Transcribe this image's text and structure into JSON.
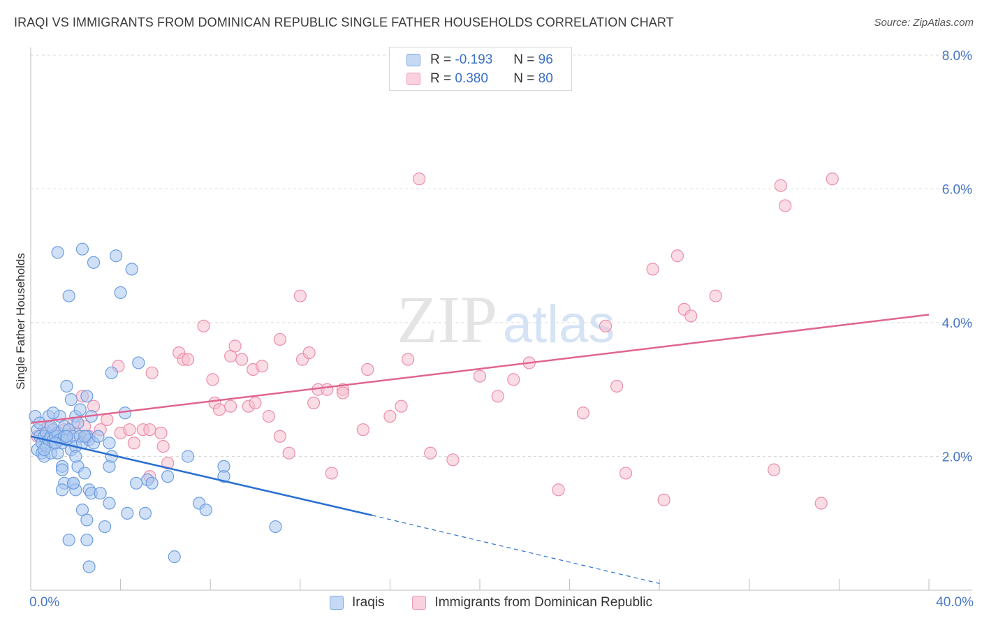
{
  "title": "IRAQI VS IMMIGRANTS FROM DOMINICAN REPUBLIC SINGLE FATHER HOUSEHOLDS CORRELATION CHART",
  "source": "Source: ZipAtlas.com",
  "watermark": {
    "zip": "ZIP",
    "atlas": "atlas"
  },
  "colors": {
    "blue_fill": "#a9c6f0",
    "blue_stroke": "#6d9ee0",
    "blue_line": "#2a6fd1",
    "pink_fill": "#f6bfd0",
    "pink_stroke": "#ec8eab",
    "pink_line": "#e0658f",
    "axis_label": "#4a78c8",
    "grid": "#d9d9d9"
  },
  "legend": {
    "rows": [
      {
        "r_label": "R =",
        "r_value": "-0.193",
        "n_label": "N =",
        "n_value": "96"
      },
      {
        "r_label": "R =",
        "r_value": "0.380",
        "n_label": "N =",
        "n_value": "80"
      }
    ]
  },
  "chart_data": {
    "type": "scatter",
    "title": "IRAQI VS IMMIGRANTS FROM DOMINICAN REPUBLIC SINGLE FATHER HOUSEHOLDS CORRELATION CHART",
    "xlabel": "",
    "ylabel": "Single Father Households",
    "xlim": [
      0,
      40
    ],
    "ylim": [
      0,
      8
    ],
    "x_tick_labels": [
      "0.0%",
      "40.0%"
    ],
    "y_ticks": [
      2,
      4,
      6,
      8
    ],
    "y_tick_labels": [
      "2.0%",
      "4.0%",
      "6.0%",
      "8.0%"
    ],
    "grid": true,
    "series": [
      {
        "name": "Iraqis",
        "color": "#a9c6f0",
        "trend": {
          "x0": 0,
          "y0": 2.3,
          "x1": 15.2,
          "y1": 1.12,
          "dash_to_x": 28.0,
          "dash_to_y": 0.1
        },
        "points": [
          [
            0.2,
            2.6
          ],
          [
            0.3,
            2.4
          ],
          [
            0.3,
            2.1
          ],
          [
            0.4,
            2.5
          ],
          [
            0.4,
            2.3
          ],
          [
            0.5,
            2.05
          ],
          [
            0.5,
            2.2
          ],
          [
            0.6,
            2.3
          ],
          [
            0.6,
            2.0
          ],
          [
            0.7,
            2.15
          ],
          [
            0.7,
            2.35
          ],
          [
            0.8,
            2.25
          ],
          [
            0.8,
            2.6
          ],
          [
            0.9,
            2.3
          ],
          [
            0.9,
            2.05
          ],
          [
            1.0,
            2.25
          ],
          [
            1.0,
            2.4
          ],
          [
            1.1,
            2.3
          ],
          [
            1.1,
            2.2
          ],
          [
            1.2,
            2.35
          ],
          [
            1.2,
            2.05
          ],
          [
            1.3,
            2.6
          ],
          [
            1.3,
            2.25
          ],
          [
            1.4,
            2.2
          ],
          [
            1.5,
            2.45
          ],
          [
            1.5,
            2.3
          ],
          [
            1.6,
            2.25
          ],
          [
            1.7,
            2.4
          ],
          [
            1.8,
            2.1
          ],
          [
            1.9,
            2.3
          ],
          [
            2.0,
            2.6
          ],
          [
            2.0,
            2.15
          ],
          [
            2.1,
            2.5
          ],
          [
            2.2,
            2.3
          ],
          [
            2.3,
            2.2
          ],
          [
            2.5,
            2.3
          ],
          [
            2.6,
            2.25
          ],
          [
            2.7,
            2.6
          ],
          [
            2.8,
            2.2
          ],
          [
            3.0,
            2.3
          ],
          [
            1.2,
            5.05
          ],
          [
            2.3,
            5.1
          ],
          [
            2.8,
            4.9
          ],
          [
            3.8,
            5.0
          ],
          [
            4.5,
            4.8
          ],
          [
            1.7,
            4.4
          ],
          [
            4.0,
            4.45
          ],
          [
            4.8,
            3.4
          ],
          [
            3.6,
            3.25
          ],
          [
            1.6,
            3.05
          ],
          [
            2.5,
            2.9
          ],
          [
            2.2,
            2.7
          ],
          [
            1.0,
            2.65
          ],
          [
            1.8,
            2.85
          ],
          [
            4.2,
            2.65
          ],
          [
            3.5,
            2.2
          ],
          [
            1.4,
            1.85
          ],
          [
            2.1,
            1.85
          ],
          [
            2.4,
            1.75
          ],
          [
            3.5,
            1.85
          ],
          [
            3.6,
            2.0
          ],
          [
            2.0,
            2.0
          ],
          [
            1.5,
            1.6
          ],
          [
            1.9,
            1.6
          ],
          [
            2.0,
            1.5
          ],
          [
            1.4,
            1.5
          ],
          [
            2.6,
            1.5
          ],
          [
            2.7,
            1.45
          ],
          [
            3.1,
            1.45
          ],
          [
            3.5,
            1.3
          ],
          [
            4.7,
            1.6
          ],
          [
            5.2,
            1.65
          ],
          [
            5.4,
            1.6
          ],
          [
            6.1,
            1.7
          ],
          [
            7.0,
            2.0
          ],
          [
            8.6,
            1.85
          ],
          [
            8.6,
            1.7
          ],
          [
            7.5,
            1.3
          ],
          [
            7.8,
            1.2
          ],
          [
            2.3,
            1.2
          ],
          [
            2.5,
            1.05
          ],
          [
            3.3,
            0.95
          ],
          [
            4.3,
            1.15
          ],
          [
            5.1,
            1.15
          ],
          [
            1.7,
            0.75
          ],
          [
            2.5,
            0.75
          ],
          [
            2.6,
            0.35
          ],
          [
            6.4,
            0.5
          ],
          [
            10.9,
            0.95
          ],
          [
            1.4,
            1.8
          ],
          [
            1.9,
            1.6
          ],
          [
            1.1,
            2.2
          ],
          [
            0.6,
            2.1
          ],
          [
            0.9,
            2.45
          ],
          [
            1.6,
            2.3
          ],
          [
            2.4,
            2.3
          ]
        ]
      },
      {
        "name": "Immigrants from Dominican Republic",
        "color": "#f6bfd0",
        "trend": {
          "x0": 0,
          "y0": 2.5,
          "x1": 40,
          "y1": 4.12
        },
        "points": [
          [
            0.3,
            2.3
          ],
          [
            0.6,
            2.4
          ],
          [
            0.8,
            2.45
          ],
          [
            1.2,
            2.35
          ],
          [
            1.5,
            2.4
          ],
          [
            1.9,
            2.5
          ],
          [
            2.0,
            2.35
          ],
          [
            2.4,
            2.45
          ],
          [
            2.6,
            2.3
          ],
          [
            2.8,
            2.75
          ],
          [
            3.1,
            2.4
          ],
          [
            3.4,
            2.55
          ],
          [
            2.3,
            2.9
          ],
          [
            3.9,
            3.35
          ],
          [
            4.0,
            2.35
          ],
          [
            4.4,
            2.4
          ],
          [
            4.6,
            2.2
          ],
          [
            5.0,
            2.4
          ],
          [
            5.3,
            2.4
          ],
          [
            5.8,
            2.35
          ],
          [
            5.9,
            2.15
          ],
          [
            6.1,
            1.9
          ],
          [
            5.3,
            1.7
          ],
          [
            6.6,
            3.55
          ],
          [
            6.8,
            3.45
          ],
          [
            7.0,
            3.45
          ],
          [
            5.4,
            3.25
          ],
          [
            7.7,
            3.95
          ],
          [
            8.1,
            3.15
          ],
          [
            8.2,
            2.8
          ],
          [
            8.4,
            2.7
          ],
          [
            8.9,
            3.5
          ],
          [
            8.9,
            2.75
          ],
          [
            9.1,
            3.65
          ],
          [
            9.4,
            3.45
          ],
          [
            9.7,
            2.75
          ],
          [
            9.9,
            3.3
          ],
          [
            10.0,
            2.8
          ],
          [
            10.3,
            3.35
          ],
          [
            10.6,
            2.6
          ],
          [
            11.1,
            2.3
          ],
          [
            11.1,
            3.75
          ],
          [
            11.5,
            2.05
          ],
          [
            12.0,
            4.4
          ],
          [
            12.1,
            3.45
          ],
          [
            12.4,
            3.55
          ],
          [
            12.6,
            2.8
          ],
          [
            12.8,
            3.0
          ],
          [
            13.2,
            3.0
          ],
          [
            13.9,
            3.0
          ],
          [
            13.9,
            2.95
          ],
          [
            14.8,
            2.4
          ],
          [
            15.0,
            3.3
          ],
          [
            16.0,
            2.6
          ],
          [
            16.5,
            2.75
          ],
          [
            16.8,
            3.45
          ],
          [
            17.3,
            6.15
          ],
          [
            17.8,
            2.05
          ],
          [
            18.8,
            1.95
          ],
          [
            20.0,
            3.2
          ],
          [
            20.8,
            2.9
          ],
          [
            21.5,
            3.15
          ],
          [
            22.2,
            3.4
          ],
          [
            23.5,
            1.5
          ],
          [
            24.6,
            2.65
          ],
          [
            25.6,
            3.95
          ],
          [
            26.1,
            3.05
          ],
          [
            26.5,
            1.75
          ],
          [
            27.7,
            4.8
          ],
          [
            28.2,
            1.35
          ],
          [
            28.8,
            5.0
          ],
          [
            29.1,
            4.2
          ],
          [
            29.4,
            4.1
          ],
          [
            30.5,
            4.4
          ],
          [
            33.4,
            6.05
          ],
          [
            33.6,
            5.75
          ],
          [
            33.1,
            1.8
          ],
          [
            35.2,
            1.3
          ],
          [
            35.7,
            6.15
          ],
          [
            13.4,
            1.75
          ]
        ]
      }
    ]
  },
  "bottom_legend": {
    "series_a": "Iraqis",
    "series_b": "Immigrants from Dominican Republic"
  }
}
